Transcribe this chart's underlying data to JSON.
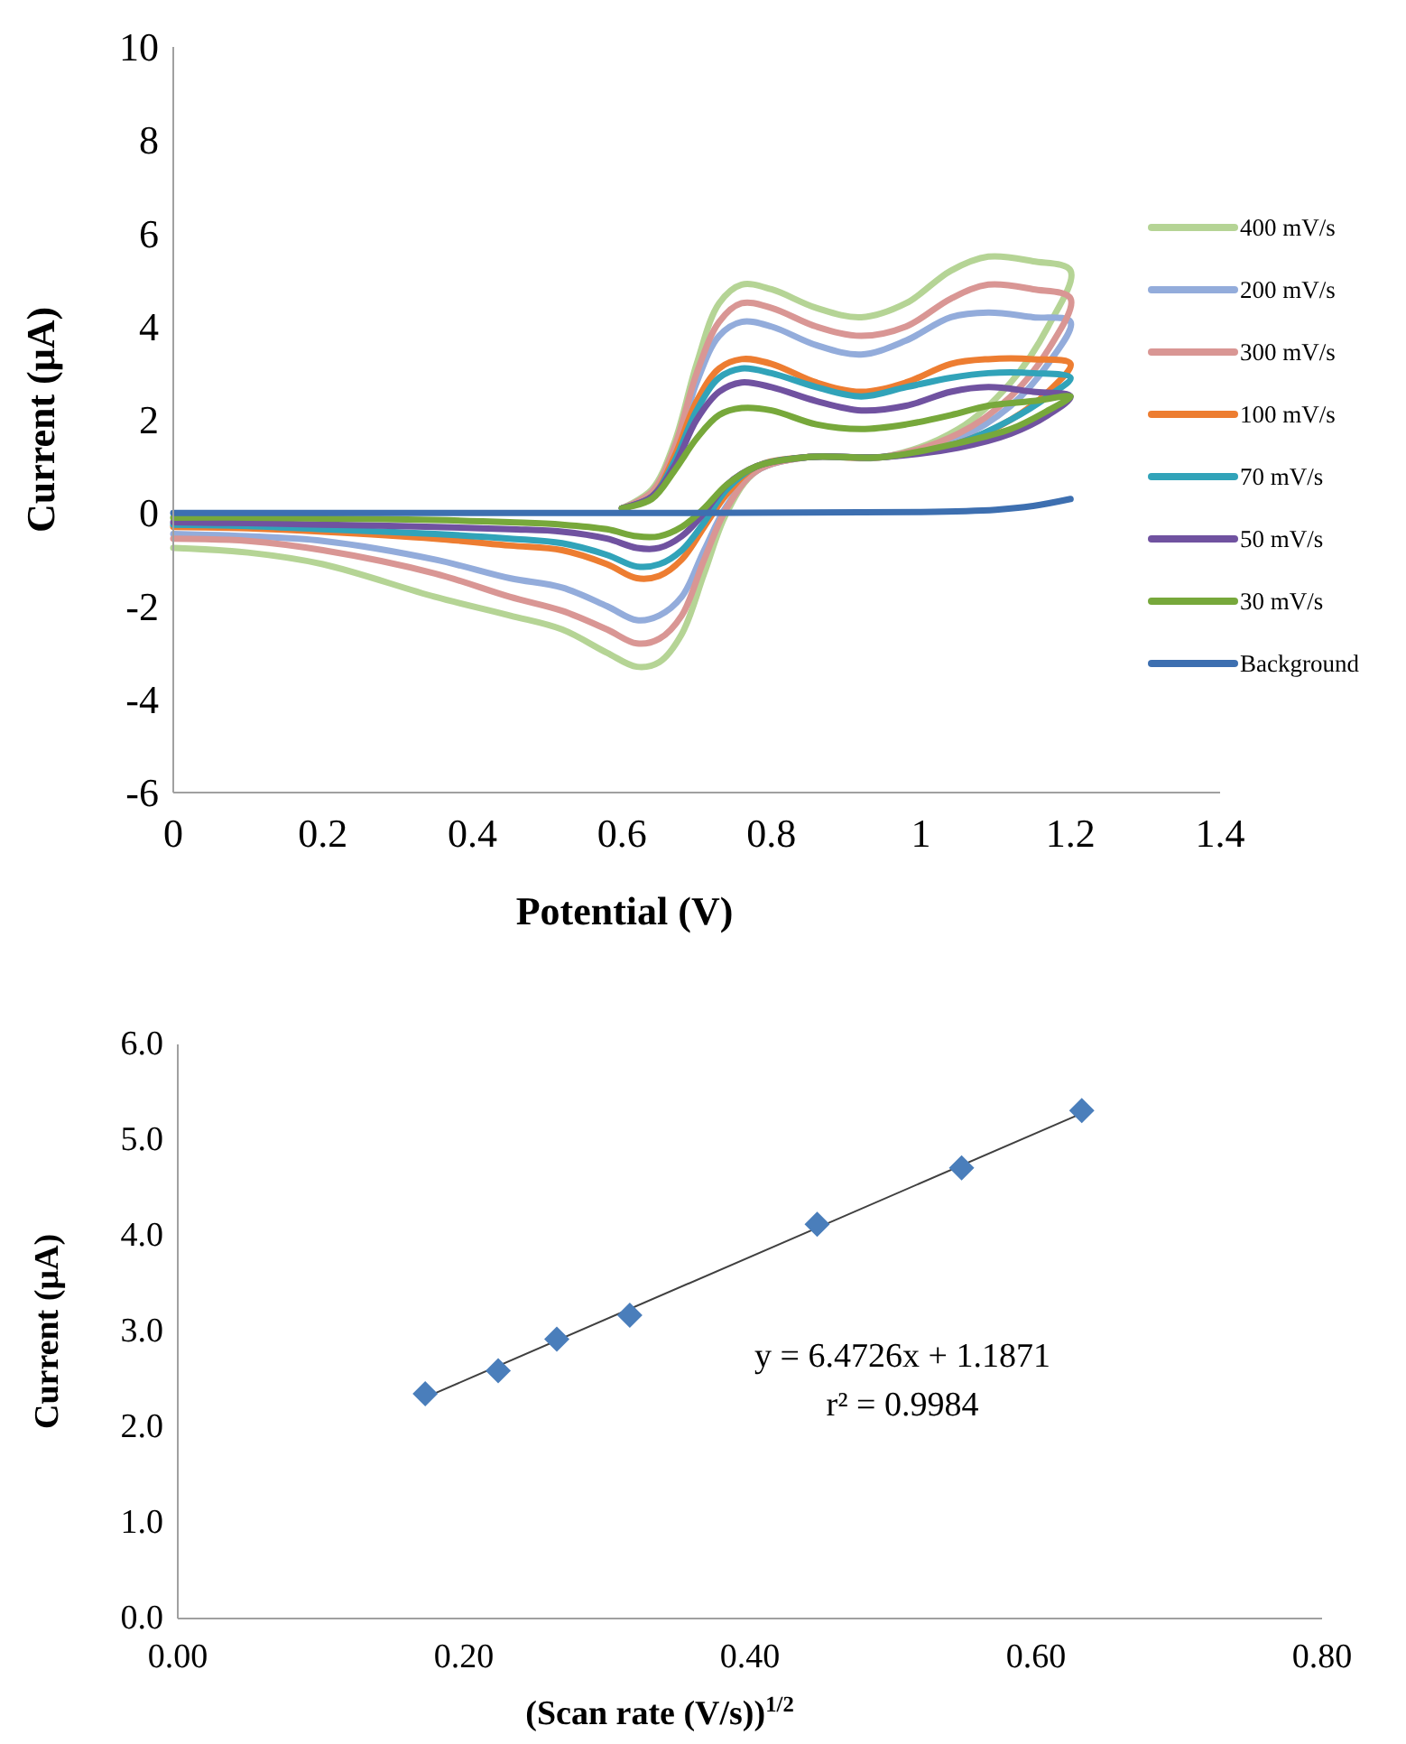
{
  "chart_data": [
    {
      "type": "line",
      "xlabel": "Potential (V)",
      "ylabel": "Current (μA)",
      "xlim": [
        0,
        1.4
      ],
      "ylim": [
        -6,
        10
      ],
      "xticks": [
        0,
        0.2,
        0.4,
        0.6,
        0.8,
        1,
        1.2,
        1.4
      ],
      "yticks": [
        -6,
        -4,
        -2,
        0,
        2,
        4,
        6,
        8,
        10
      ],
      "legend": "right",
      "series": [
        {
          "name": "400 mV/s",
          "color": "#b5d495",
          "x": [
            0.6,
            0.64,
            0.67,
            0.7,
            0.73,
            0.76,
            0.8,
            0.86,
            0.92,
            0.98,
            1.04,
            1.09,
            1.15,
            1.2,
            1.17,
            1.12,
            1.05,
            0.95,
            0.85,
            0.78,
            0.74,
            0.71,
            0.68,
            0.65,
            0.62,
            0.58,
            0.52,
            0.45,
            0.35,
            0.2,
            0.1,
            0
          ],
          "values": [
            0.1,
            0.5,
            1.5,
            3.2,
            4.5,
            4.9,
            4.8,
            4.4,
            4.2,
            4.5,
            5.2,
            5.5,
            5.4,
            5.2,
            4.0,
            2.8,
            1.8,
            1.2,
            1.2,
            0.9,
            0,
            -1.3,
            -2.6,
            -3.2,
            -3.3,
            -3.0,
            -2.5,
            -2.2,
            -1.8,
            -1.1,
            -0.85,
            -0.75
          ]
        },
        {
          "name": "200 mV/s",
          "color": "#93acdb",
          "x": [
            0.6,
            0.64,
            0.67,
            0.7,
            0.73,
            0.76,
            0.8,
            0.86,
            0.92,
            0.98,
            1.04,
            1.09,
            1.15,
            1.2,
            1.17,
            1.12,
            1.05,
            0.95,
            0.85,
            0.78,
            0.74,
            0.71,
            0.68,
            0.65,
            0.62,
            0.58,
            0.52,
            0.45,
            0.35,
            0.2,
            0.1,
            0
          ],
          "values": [
            0.1,
            0.4,
            1.3,
            2.8,
            3.8,
            4.1,
            4.0,
            3.6,
            3.4,
            3.7,
            4.2,
            4.3,
            4.2,
            4.1,
            3.2,
            2.3,
            1.6,
            1.2,
            1.2,
            0.9,
            0.15,
            -0.8,
            -1.8,
            -2.2,
            -2.3,
            -2.0,
            -1.6,
            -1.4,
            -1.0,
            -0.6,
            -0.5,
            -0.45
          ]
        },
        {
          "name": "300 mV/s",
          "color": "#d99694",
          "x": [
            0.6,
            0.64,
            0.67,
            0.7,
            0.73,
            0.76,
            0.8,
            0.86,
            0.92,
            0.98,
            1.04,
            1.09,
            1.15,
            1.2,
            1.17,
            1.12,
            1.05,
            0.95,
            0.85,
            0.78,
            0.74,
            0.71,
            0.68,
            0.65,
            0.62,
            0.58,
            0.52,
            0.45,
            0.35,
            0.2,
            0.1,
            0
          ],
          "values": [
            0.1,
            0.45,
            1.4,
            3.0,
            4.1,
            4.5,
            4.4,
            4.0,
            3.8,
            4.0,
            4.6,
            4.9,
            4.8,
            4.6,
            3.5,
            2.5,
            1.7,
            1.2,
            1.2,
            0.9,
            0.1,
            -1.0,
            -2.2,
            -2.7,
            -2.8,
            -2.5,
            -2.1,
            -1.8,
            -1.3,
            -0.8,
            -0.6,
            -0.55
          ]
        },
        {
          "name": "100 mV/s",
          "color": "#ed7d31",
          "x": [
            0.6,
            0.64,
            0.67,
            0.7,
            0.73,
            0.76,
            0.8,
            0.86,
            0.92,
            0.98,
            1.04,
            1.09,
            1.15,
            1.2,
            1.17,
            1.12,
            1.05,
            0.95,
            0.85,
            0.78,
            0.74,
            0.71,
            0.68,
            0.65,
            0.62,
            0.58,
            0.52,
            0.45,
            0.35,
            0.2,
            0.1,
            0
          ],
          "values": [
            0.1,
            0.35,
            1.2,
            2.4,
            3.1,
            3.3,
            3.2,
            2.8,
            2.6,
            2.8,
            3.2,
            3.3,
            3.3,
            3.2,
            2.6,
            2.0,
            1.5,
            1.2,
            1.2,
            1.0,
            0.4,
            -0.3,
            -1.0,
            -1.35,
            -1.4,
            -1.1,
            -0.8,
            -0.7,
            -0.55,
            -0.4,
            -0.33,
            -0.3
          ]
        },
        {
          "name": "70 mV/s",
          "color": "#31a3b9",
          "x": [
            0.6,
            0.64,
            0.67,
            0.7,
            0.73,
            0.76,
            0.8,
            0.86,
            0.92,
            0.98,
            1.04,
            1.09,
            1.15,
            1.2,
            1.17,
            1.12,
            1.05,
            0.95,
            0.85,
            0.78,
            0.74,
            0.71,
            0.68,
            0.65,
            0.62,
            0.58,
            0.52,
            0.45,
            0.35,
            0.2,
            0.1,
            0
          ],
          "values": [
            0.1,
            0.35,
            1.1,
            2.2,
            2.9,
            3.1,
            3.0,
            2.7,
            2.5,
            2.7,
            2.9,
            3.0,
            3.0,
            2.9,
            2.5,
            2.0,
            1.5,
            1.2,
            1.2,
            1.0,
            0.5,
            -0.2,
            -0.8,
            -1.1,
            -1.15,
            -0.9,
            -0.65,
            -0.55,
            -0.45,
            -0.35,
            -0.28,
            -0.25
          ]
        },
        {
          "name": "50 mV/s",
          "color": "#7052a0",
          "x": [
            0.6,
            0.64,
            0.67,
            0.7,
            0.73,
            0.76,
            0.8,
            0.86,
            0.92,
            0.98,
            1.04,
            1.09,
            1.15,
            1.2,
            1.17,
            1.12,
            1.05,
            0.95,
            0.85,
            0.78,
            0.74,
            0.71,
            0.68,
            0.65,
            0.62,
            0.58,
            0.52,
            0.45,
            0.35,
            0.2,
            0.1,
            0
          ],
          "values": [
            0.1,
            0.35,
            1.0,
            2.0,
            2.6,
            2.8,
            2.7,
            2.4,
            2.2,
            2.3,
            2.6,
            2.7,
            2.6,
            2.5,
            2.1,
            1.7,
            1.4,
            1.2,
            1.2,
            1.0,
            0.6,
            0,
            -0.5,
            -0.75,
            -0.75,
            -0.55,
            -0.4,
            -0.35,
            -0.3,
            -0.25,
            -0.22,
            -0.2
          ]
        },
        {
          "name": "30 mV/s",
          "color": "#77a83b",
          "x": [
            0.6,
            0.64,
            0.67,
            0.7,
            0.73,
            0.76,
            0.8,
            0.86,
            0.92,
            0.98,
            1.04,
            1.09,
            1.15,
            1.2,
            1.17,
            1.12,
            1.05,
            0.95,
            0.85,
            0.78,
            0.74,
            0.71,
            0.68,
            0.65,
            0.62,
            0.58,
            0.52,
            0.45,
            0.35,
            0.2,
            0.1,
            0
          ],
          "values": [
            0.1,
            0.3,
            0.9,
            1.6,
            2.1,
            2.25,
            2.2,
            1.9,
            1.8,
            1.9,
            2.1,
            2.3,
            2.4,
            2.5,
            2.2,
            1.8,
            1.5,
            1.2,
            1.2,
            1.0,
            0.6,
            0.1,
            -0.3,
            -0.5,
            -0.5,
            -0.35,
            -0.25,
            -0.2,
            -0.15,
            -0.12,
            -0.1,
            -0.1
          ]
        },
        {
          "name": "Background",
          "color": "#3d6fb0",
          "x": [
            0,
            0.5,
            1.0,
            1.1,
            1.15,
            1.2
          ],
          "values": [
            0,
            0,
            0.02,
            0.07,
            0.15,
            0.3
          ]
        }
      ]
    },
    {
      "type": "scatter",
      "xlabel": "(Scan rate (V/s))$^{1/2}$",
      "ylabel": "Current (μA)",
      "xlim": [
        0,
        0.8
      ],
      "ylim": [
        0,
        6
      ],
      "xticks": [
        {
          "value": 0,
          "label": "0.00"
        },
        {
          "value": 0.2,
          "label": "0.20"
        },
        {
          "value": 0.4,
          "label": "0.40"
        },
        {
          "value": 0.6,
          "label": "0.60"
        },
        {
          "value": 0.8,
          "label": "0.80"
        }
      ],
      "yticks": [
        {
          "value": 0,
          "label": "0.0"
        },
        {
          "value": 1,
          "label": "1.0"
        },
        {
          "value": 2,
          "label": "2.0"
        },
        {
          "value": 3,
          "label": "3.0"
        },
        {
          "value": 4,
          "label": "4.0"
        },
        {
          "value": 5,
          "label": "5.0"
        },
        {
          "value": 6,
          "label": "6.0"
        }
      ],
      "annotations": [
        "y = 6.4726x + 1.1871",
        "r² = 0.9984"
      ],
      "series": [
        {
          "type": "line",
          "color": "#404040",
          "x": [
            0.173,
            0.632
          ],
          "values": [
            2.31,
            5.28
          ]
        },
        {
          "color": "#4a7ebb",
          "marker": "diamond",
          "x": [
            0.173,
            0.224,
            0.265,
            0.316,
            0.447,
            0.548,
            0.632
          ],
          "values": [
            2.35,
            2.59,
            2.92,
            3.17,
            4.12,
            4.71,
            5.31
          ]
        }
      ]
    }
  ]
}
